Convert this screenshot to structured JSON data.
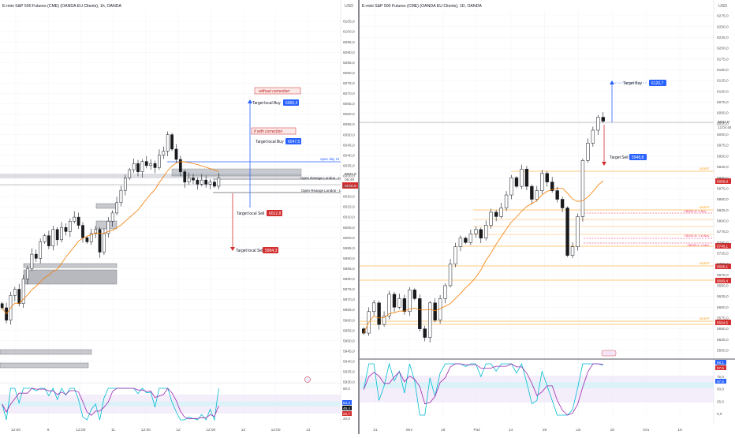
{
  "colors": {
    "up": "#ffffff",
    "down": "#1a1a1a",
    "wick": "#131722",
    "blue_box": "#2962ff",
    "red_box": "#d32f2f",
    "orange": "#ff9800",
    "ma": "#f57c00",
    "stoch_k": "#00bcd4",
    "stoch_d": "#9c27b0",
    "grid": "#f0f3fa",
    "axis_text": "#555555",
    "band": "#ede1f7"
  },
  "left": {
    "title": "E-mini S&P 500 Futures (CME) (OANDA EU Clients), 1h, OANDA",
    "currency": "USD",
    "annotations": {
      "without_correction": "without correction",
      "with_correction": "if with correction",
      "target_buy_1": "Target local Buy",
      "target_buy_1_value": "6066,4",
      "target_buy_2": "Target local Buy",
      "target_buy_2_value": "6047,5",
      "target_sell_1": "Target local Sell",
      "target_sell_1_value": "6012,8",
      "target_sell_2": "Target local Sell",
      "target_sell_2_value": "5994,3",
      "open_day_hi": "open day Hi",
      "orl_hi": "Open Reange London - H",
      "orl_lo": "Open Reange London - L",
      "price_label": "6028,9",
      "price_label_2": "6031,0",
      "time_label": "05:49",
      "stoch_k": "54,3",
      "stoch_d": "49,4",
      "stoch_lo": "22,7"
    },
    "chart_data": {
      "type": "candlestick",
      "title": "E-mini S&P 500 Futures (CME) (OANDA EU Clients), 1h, OANDA",
      "ylim": [
        5930,
        6110
      ],
      "yticks": [
        "6105,0",
        "6100,0",
        "6095,0",
        "6090,0",
        "6085,0",
        "6080,0",
        "6075,0",
        "6070,0",
        "6065,0",
        "6060,0",
        "6055,0",
        "6050,0",
        "6045,0",
        "6040,0",
        "6035,0",
        "6030,0",
        "6025,0",
        "6020,0",
        "6015,0",
        "6010,0",
        "6005,0",
        "6000,0",
        "5995,0",
        "5990,0",
        "5985,0",
        "5980,0",
        "5975,0",
        "5970,0",
        "5965,0",
        "5960,0",
        "5955,0",
        "5950,0",
        "5945,0",
        "5940,0",
        "5935,0",
        "5930,0"
      ],
      "xticks": [
        "12:00",
        "8",
        "12:00",
        "11",
        "12:00",
        "12",
        "12:00",
        "13",
        "12:00",
        "14"
      ],
      "stoch_yticks": [
        "80,0",
        "50,0",
        "20,0"
      ],
      "closes": [
        5966,
        5960,
        5972,
        5975,
        5968,
        5980,
        5985,
        5992,
        5990,
        5998,
        6001,
        5996,
        6004,
        5999,
        6005,
        6003,
        6008,
        6010,
        6006,
        6000,
        5998,
        6002,
        6004,
        5993,
        6002,
        6008,
        6012,
        6017,
        6023,
        6029,
        6033,
        6036,
        6032,
        6037,
        6035,
        6036,
        6034,
        6040,
        6042,
        6050,
        6043,
        6038,
        6032,
        6027,
        6029,
        6028,
        6026,
        6028,
        6026,
        6027,
        6025,
        6029
      ]
    }
  },
  "right": {
    "title": "E-mini S&P 500 Futures (CME) (OANDA EU Clients), 1D, OANDA",
    "currency": "USD",
    "annotations": {
      "target_buy": "Target Buy",
      "target_buy_value": "6120,7",
      "target_sell": "Target Sell",
      "target_sell_value": "5948,8",
      "price_label": "6031,0",
      "time_label": "12:04:48",
      "price_red": "5858,8",
      "price_red_2": "5740,1",
      "price_red_3": "5695,1",
      "price_red_4": "5660,4",
      "price_red_5": "5564,5",
      "hdog1": "HDOG-H: 1 Nov",
      "hdog2": "HDOG-H: 1 st Nov",
      "hdog3": "HDOG-L: 1 Nov",
      "side_level": "SIDEPT",
      "stoch_k": "58,1",
      "stoch_d": "97,5",
      "stoch_lo": "97,6"
    },
    "chart_data": {
      "type": "candlestick",
      "title": "E-mini S&P 500 Futures (CME) (OANDA EU Clients), 1D, OANDA",
      "ylim": [
        5500,
        6275
      ],
      "yticks": [
        "6275,0",
        "6250,0",
        "6225,0",
        "6200,0",
        "6175,0",
        "6150,0",
        "6125,0",
        "6100,0",
        "6075,0",
        "6050,0",
        "6025,0",
        "6000,0",
        "5975,0",
        "5950,0",
        "5925,0",
        "5900,0",
        "5875,0",
        "5850,0",
        "5825,0",
        "5800,0",
        "5775,0",
        "5750,0",
        "5725,0",
        "5700,0",
        "5675,0",
        "5650,0",
        "5625,0",
        "5600,0",
        "5575,0",
        "5550,0",
        "5525,0",
        "5500,0"
      ],
      "xticks": [
        "21",
        "Wrz",
        "16",
        "Paź",
        "14",
        "28",
        "Lis",
        "18",
        "Gru",
        "16"
      ],
      "stoch_yticks": [
        "100,0",
        "75,0",
        "50,0",
        "25,0",
        "0,0"
      ],
      "closes": [
        5540,
        5590,
        5610,
        5560,
        5580,
        5630,
        5600,
        5620,
        5590,
        5640,
        5620,
        5550,
        5530,
        5610,
        5570,
        5620,
        5650,
        5700,
        5740,
        5760,
        5750,
        5770,
        5780,
        5760,
        5790,
        5820,
        5810,
        5830,
        5860,
        5900,
        5880,
        5920,
        5880,
        5850,
        5870,
        5910,
        5890,
        5870,
        5850,
        5830,
        5720,
        5740,
        5810,
        5940,
        5980,
        6010,
        6040,
        6031
      ]
    }
  }
}
